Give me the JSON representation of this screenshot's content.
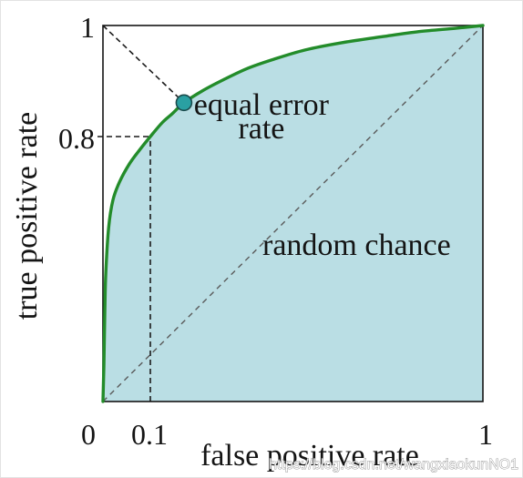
{
  "watermark": "https://blog.csdn.net/wangxiaokunNO1",
  "chart_data": {
    "type": "line",
    "xlabel": "false positive rate",
    "ylabel": "true positive rate",
    "xlim": [
      0,
      1
    ],
    "ylim": [
      0,
      1
    ],
    "x_ticks": [
      {
        "value": 0,
        "label": "0"
      },
      {
        "value": 0.1,
        "label": "0.1"
      },
      {
        "value": 1,
        "label": "1"
      }
    ],
    "y_ticks": [
      {
        "value": 0.8,
        "label": "0.8"
      },
      {
        "value": 1,
        "label": "1"
      }
    ],
    "grid": false,
    "legend": "none",
    "frame": true,
    "series": [
      {
        "name": "",
        "dashed": false,
        "color": "#238c2a",
        "fill_below": "#badee4",
        "x": [
          0,
          0.002,
          0.004,
          0.006,
          0.012,
          0.021,
          0.035,
          0.056,
          0.077,
          0.1,
          0.132,
          0.159,
          0.191,
          0.24,
          0.297,
          0.364,
          0.433,
          0.519,
          0.618,
          0.729,
          0.827,
          0.926,
          1
        ],
        "y": [
          0,
          0.113,
          0.278,
          0.388,
          0.525,
          0.608,
          0.663,
          0.718,
          0.759,
          0.8,
          0.825,
          0.841,
          0.861,
          0.882,
          0.902,
          0.923,
          0.939,
          0.956,
          0.969,
          0.98,
          0.989,
          0.995,
          1
        ]
      },
      {
        "name": "random chance",
        "dashed": true,
        "color": "#5a5a5a",
        "x": [
          0,
          1
        ],
        "y": [
          0,
          1
        ]
      }
    ],
    "markers": [
      {
        "label_lines": [
          "equal error",
          "rate"
        ],
        "x": 0.191,
        "y": 0.861,
        "color": "#2aa0a2",
        "edge_color": "#1c4b4c"
      }
    ],
    "guide_lines": [
      {
        "from": [
          0,
          1
        ],
        "to": [
          0.191,
          0.861
        ],
        "dashed": true,
        "color": "#1a1a1a"
      },
      {
        "from": [
          0.1,
          0
        ],
        "to": [
          0.1,
          0.8
        ],
        "dashed": true,
        "color": "#1a1a1a"
      },
      {
        "from": [
          0,
          0.8
        ],
        "to": [
          0.1,
          0.8
        ],
        "dashed": true,
        "color": "#1a1a1a"
      }
    ]
  }
}
